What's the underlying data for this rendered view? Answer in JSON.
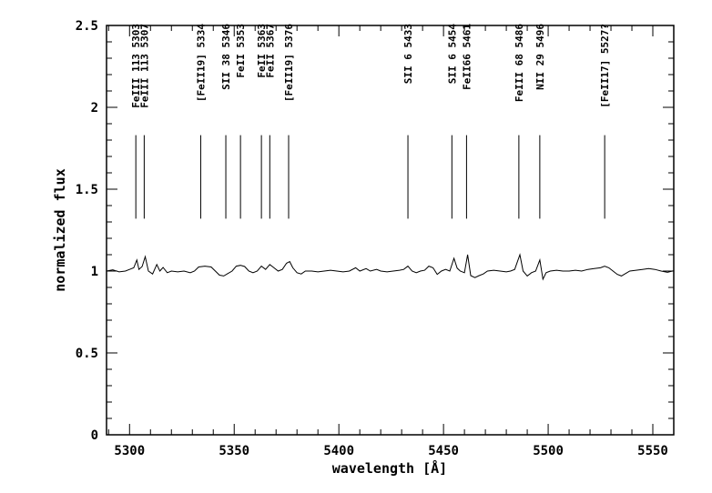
{
  "figure": {
    "background": "#ffffff",
    "ink_color": "#000000"
  },
  "chart_data": {
    "type": "line",
    "title": "",
    "xlabel": "wavelength [Å]",
    "ylabel": "normalized flux",
    "xlim": [
      5289,
      5560
    ],
    "ylim": [
      0,
      2.5
    ],
    "grid": false,
    "legend": "none",
    "x_major_ticks": [
      5300,
      5350,
      5400,
      5450,
      5500,
      5550
    ],
    "x_tick_labels": [
      "5300",
      "5350",
      "5400",
      "5450",
      "5500",
      "5550"
    ],
    "x_minor_step": 10,
    "y_major_ticks": [
      0,
      0.5,
      1,
      1.5,
      2,
      2.5
    ],
    "y_tick_labels": [
      "0",
      "0.5",
      "1",
      "1.5",
      "2",
      "2.5"
    ],
    "y_minor_step": 0.1,
    "line_markers": {
      "marker_flux_from": 1.32,
      "marker_flux_to": 1.83,
      "items": [
        {
          "wavelength": 5303,
          "label": "FeIII 113 5303"
        },
        {
          "wavelength": 5307,
          "label": "FeIII 113 5307"
        },
        {
          "wavelength": 5334,
          "label": "[FeII19] 5334"
        },
        {
          "wavelength": 5346,
          "label": "SII 38 5346"
        },
        {
          "wavelength": 5353,
          "label": "FeII 5353"
        },
        {
          "wavelength": 5363,
          "label": "FeII 5363"
        },
        {
          "wavelength": 5367,
          "label": "FeII 5367"
        },
        {
          "wavelength": 5376,
          "label": "[FeII19] 5376"
        },
        {
          "wavelength": 5433,
          "label": "SII 6 5433"
        },
        {
          "wavelength": 5454,
          "label": "SII 6 5454"
        },
        {
          "wavelength": 5461,
          "label": "FeII66 5461"
        },
        {
          "wavelength": 5486,
          "label": "FeIII 68 5486"
        },
        {
          "wavelength": 5496,
          "label": "NII 29 5496"
        },
        {
          "wavelength": 5527,
          "label": "[FeII17] 5527?"
        }
      ]
    },
    "series": [
      {
        "name": "spectrum",
        "points": [
          [
            5289,
            1.0
          ],
          [
            5292,
            1.008
          ],
          [
            5295,
            0.995
          ],
          [
            5298,
            1.0
          ],
          [
            5300,
            1.01
          ],
          [
            5302,
            1.02
          ],
          [
            5303.5,
            1.068
          ],
          [
            5304.5,
            1.01
          ],
          [
            5306,
            1.028
          ],
          [
            5307.5,
            1.088
          ],
          [
            5309,
            1.0
          ],
          [
            5311,
            0.982
          ],
          [
            5313,
            1.04
          ],
          [
            5314.5,
            1.0
          ],
          [
            5316,
            1.022
          ],
          [
            5318,
            0.99
          ],
          [
            5320,
            1.0
          ],
          [
            5323,
            0.995
          ],
          [
            5326,
            1.0
          ],
          [
            5329,
            0.99
          ],
          [
            5331,
            1.0
          ],
          [
            5333,
            1.025
          ],
          [
            5336,
            1.03
          ],
          [
            5339,
            1.025
          ],
          [
            5341,
            1.0
          ],
          [
            5343,
            0.975
          ],
          [
            5345,
            0.97
          ],
          [
            5347,
            0.985
          ],
          [
            5349,
            1.0
          ],
          [
            5351,
            1.03
          ],
          [
            5353,
            1.035
          ],
          [
            5355,
            1.028
          ],
          [
            5357,
            1.0
          ],
          [
            5359,
            0.99
          ],
          [
            5361,
            1.0
          ],
          [
            5363,
            1.03
          ],
          [
            5365,
            1.01
          ],
          [
            5367,
            1.04
          ],
          [
            5369,
            1.02
          ],
          [
            5371,
            1.0
          ],
          [
            5373,
            1.01
          ],
          [
            5375,
            1.048
          ],
          [
            5376.5,
            1.058
          ],
          [
            5378,
            1.02
          ],
          [
            5380,
            0.99
          ],
          [
            5382,
            0.982
          ],
          [
            5384,
            1.0
          ],
          [
            5387,
            1.0
          ],
          [
            5390,
            0.995
          ],
          [
            5393,
            1.0
          ],
          [
            5396,
            1.005
          ],
          [
            5399,
            1.0
          ],
          [
            5402,
            0.995
          ],
          [
            5405,
            1.0
          ],
          [
            5408,
            1.02
          ],
          [
            5410,
            1.0
          ],
          [
            5413,
            1.015
          ],
          [
            5415,
            1.0
          ],
          [
            5418,
            1.01
          ],
          [
            5420,
            1.0
          ],
          [
            5423,
            0.995
          ],
          [
            5426,
            1.0
          ],
          [
            5429,
            1.005
          ],
          [
            5431,
            1.01
          ],
          [
            5433,
            1.03
          ],
          [
            5435,
            1.0
          ],
          [
            5437,
            0.99
          ],
          [
            5439,
            1.0
          ],
          [
            5441,
            1.005
          ],
          [
            5443,
            1.03
          ],
          [
            5445,
            1.02
          ],
          [
            5447,
            0.98
          ],
          [
            5449,
            1.0
          ],
          [
            5451,
            1.01
          ],
          [
            5453,
            1.0
          ],
          [
            5455,
            1.078
          ],
          [
            5456.5,
            1.018
          ],
          [
            5458,
            1.0
          ],
          [
            5460,
            0.99
          ],
          [
            5461.5,
            1.1
          ],
          [
            5463,
            0.972
          ],
          [
            5465,
            0.96
          ],
          [
            5467,
            0.972
          ],
          [
            5469,
            0.982
          ],
          [
            5471,
            1.0
          ],
          [
            5474,
            1.005
          ],
          [
            5477,
            1.0
          ],
          [
            5480,
            0.995
          ],
          [
            5482,
            1.0
          ],
          [
            5484,
            1.01
          ],
          [
            5486.5,
            1.1
          ],
          [
            5488,
            1.0
          ],
          [
            5490,
            0.97
          ],
          [
            5492,
            0.99
          ],
          [
            5494,
            1.0
          ],
          [
            5496,
            1.068
          ],
          [
            5497.5,
            0.95
          ],
          [
            5499,
            0.99
          ],
          [
            5501,
            1.0
          ],
          [
            5504,
            1.005
          ],
          [
            5507,
            1.0
          ],
          [
            5510,
            1.0
          ],
          [
            5513,
            1.005
          ],
          [
            5516,
            1.0
          ],
          [
            5519,
            1.01
          ],
          [
            5522,
            1.015
          ],
          [
            5525,
            1.02
          ],
          [
            5527,
            1.03
          ],
          [
            5529,
            1.02
          ],
          [
            5531,
            1.0
          ],
          [
            5533,
            0.98
          ],
          [
            5535,
            0.97
          ],
          [
            5537,
            0.985
          ],
          [
            5539,
            1.0
          ],
          [
            5542,
            1.005
          ],
          [
            5545,
            1.01
          ],
          [
            5548,
            1.015
          ],
          [
            5551,
            1.01
          ],
          [
            5554,
            1.0
          ],
          [
            5557,
            0.992
          ],
          [
            5560,
            1.002
          ]
        ]
      }
    ]
  }
}
